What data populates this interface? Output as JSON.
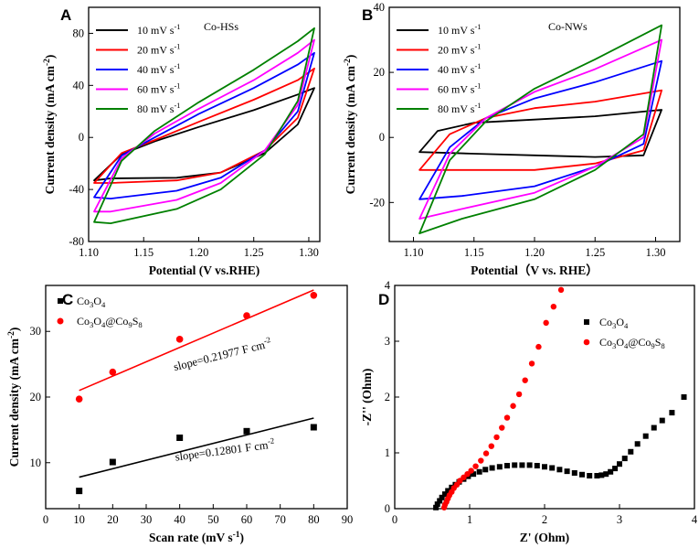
{
  "colors": {
    "black": "#000000",
    "red": "#ff0000",
    "blue": "#0000ff",
    "magenta": "#ff00ff",
    "green": "#008000"
  },
  "chart_data": [
    {
      "panel": "A",
      "type": "line",
      "subtype": "cyclic-voltammetry",
      "title": "Co-HSs",
      "xlabel": "Potential (V vs.RHE)",
      "ylabel": "Current density (mA cm-2)",
      "ylabel_base": "Current density (mA cm",
      "ylabel_sup": "-2",
      "ylabel_end": ")",
      "xlim": [
        1.1,
        1.31
      ],
      "ylim": [
        -80,
        100
      ],
      "xticks": [
        1.1,
        1.15,
        1.2,
        1.25,
        1.3
      ],
      "xtick_labels": [
        "1.10",
        "1.15",
        "1.20",
        "1.25",
        "1.30"
      ],
      "yticks": [
        -80,
        -40,
        0,
        40,
        80
      ],
      "ytick_labels": [
        "-80",
        "-40",
        "0",
        "40",
        "80"
      ],
      "legend_position": "top-left",
      "series": [
        {
          "name": "10 mV s-1",
          "label": "10 mV s",
          "unit_sup": "-1",
          "color": "#000000",
          "top": [
            [
              1.105,
              -33
            ],
            [
              1.13,
              -13
            ],
            [
              1.16,
              -3
            ],
            [
              1.2,
              8
            ],
            [
              1.25,
              21
            ],
            [
              1.29,
              33
            ],
            [
              1.305,
              38
            ]
          ],
          "bottom": [
            [
              1.105,
              -33
            ],
            [
              1.12,
              -31.5
            ],
            [
              1.18,
              -31
            ],
            [
              1.22,
              -27
            ],
            [
              1.26,
              -12
            ],
            [
              1.29,
              10
            ],
            [
              1.305,
              38
            ]
          ]
        },
        {
          "name": "20 mV s-1",
          "label": "20 mV s",
          "unit_sup": "-1",
          "color": "#ff0000",
          "top": [
            [
              1.105,
              -35
            ],
            [
              1.13,
              -12
            ],
            [
              1.16,
              -2
            ],
            [
              1.2,
              12
            ],
            [
              1.25,
              29
            ],
            [
              1.29,
              44
            ],
            [
              1.305,
              53
            ]
          ],
          "bottom": [
            [
              1.105,
              -35
            ],
            [
              1.12,
              -35
            ],
            [
              1.18,
              -33
            ],
            [
              1.22,
              -27
            ],
            [
              1.26,
              -10
            ],
            [
              1.29,
              15
            ],
            [
              1.305,
              53
            ]
          ]
        },
        {
          "name": "40 mV s-1",
          "label": "40 mV s",
          "unit_sup": "-1",
          "color": "#0000ff",
          "top": [
            [
              1.105,
              -46
            ],
            [
              1.13,
              -14
            ],
            [
              1.16,
              0
            ],
            [
              1.2,
              18
            ],
            [
              1.25,
              38
            ],
            [
              1.29,
              56
            ],
            [
              1.305,
              65
            ]
          ],
          "bottom": [
            [
              1.105,
              -46
            ],
            [
              1.12,
              -47
            ],
            [
              1.18,
              -41
            ],
            [
              1.22,
              -31
            ],
            [
              1.26,
              -10
            ],
            [
              1.29,
              20
            ],
            [
              1.305,
              65
            ]
          ]
        },
        {
          "name": "60 mV s-1",
          "label": "60 mV s",
          "unit_sup": "-1",
          "color": "#ff00ff",
          "top": [
            [
              1.105,
              -57
            ],
            [
              1.13,
              -16
            ],
            [
              1.16,
              3
            ],
            [
              1.2,
              22
            ],
            [
              1.25,
              44
            ],
            [
              1.29,
              65
            ],
            [
              1.305,
              75
            ]
          ],
          "bottom": [
            [
              1.105,
              -57
            ],
            [
              1.12,
              -57
            ],
            [
              1.18,
              -48
            ],
            [
              1.22,
              -35
            ],
            [
              1.26,
              -10
            ],
            [
              1.29,
              25
            ],
            [
              1.305,
              75
            ]
          ]
        },
        {
          "name": "80 mV s-1",
          "label": "80 mV s",
          "unit_sup": "-1",
          "color": "#008000",
          "top": [
            [
              1.105,
              -65
            ],
            [
              1.13,
              -18
            ],
            [
              1.16,
              5
            ],
            [
              1.2,
              27
            ],
            [
              1.25,
              52
            ],
            [
              1.29,
              74
            ],
            [
              1.305,
              84
            ]
          ],
          "bottom": [
            [
              1.105,
              -65
            ],
            [
              1.12,
              -66
            ],
            [
              1.18,
              -55
            ],
            [
              1.22,
              -40
            ],
            [
              1.26,
              -13
            ],
            [
              1.29,
              28
            ],
            [
              1.305,
              84
            ]
          ]
        }
      ]
    },
    {
      "panel": "B",
      "type": "line",
      "subtype": "cyclic-voltammetry",
      "title": "Co-NWs",
      "xlabel": "Potential（V vs. RHE）",
      "ylabel": "Current density (mA cm-2)",
      "ylabel_base": "Current density (mA cm",
      "ylabel_sup": "-2",
      "ylabel_end": ")",
      "xlim": [
        1.08,
        1.32
      ],
      "ylim": [
        -32,
        40
      ],
      "xticks": [
        1.1,
        1.15,
        1.2,
        1.25,
        1.3
      ],
      "xtick_labels": [
        "1.10",
        "1.15",
        "1.20",
        "1.25",
        "1.30"
      ],
      "yticks": [
        -20,
        0,
        20,
        40
      ],
      "ytick_labels": [
        "-20",
        "0",
        "20",
        "40"
      ],
      "legend_position": "top-left",
      "series": [
        {
          "name": "10 mV s-1",
          "label": "10 mV s",
          "unit_sup": "-1",
          "color": "#000000",
          "top": [
            [
              1.105,
              -4.5
            ],
            [
              1.12,
              2
            ],
            [
              1.15,
              4.5
            ],
            [
              1.2,
              5.5
            ],
            [
              1.25,
              6.5
            ],
            [
              1.305,
              8.5
            ]
          ],
          "bottom": [
            [
              1.105,
              -4.5
            ],
            [
              1.15,
              -5
            ],
            [
              1.2,
              -5.5
            ],
            [
              1.25,
              -6
            ],
            [
              1.29,
              -5.5
            ],
            [
              1.305,
              8.5
            ]
          ]
        },
        {
          "name": "20 mV s-1",
          "label": "20 mV s",
          "unit_sup": "-1",
          "color": "#ff0000",
          "top": [
            [
              1.105,
              -10
            ],
            [
              1.13,
              1
            ],
            [
              1.16,
              6
            ],
            [
              1.2,
              9
            ],
            [
              1.25,
              11
            ],
            [
              1.305,
              14.5
            ]
          ],
          "bottom": [
            [
              1.105,
              -10
            ],
            [
              1.14,
              -10
            ],
            [
              1.2,
              -10
            ],
            [
              1.25,
              -8
            ],
            [
              1.29,
              -4
            ],
            [
              1.305,
              14.5
            ]
          ]
        },
        {
          "name": "40 mV s-1",
          "label": "40 mV s",
          "unit_sup": "-1",
          "color": "#0000ff",
          "top": [
            [
              1.105,
              -19
            ],
            [
              1.13,
              -3
            ],
            [
              1.16,
              6
            ],
            [
              1.2,
              12
            ],
            [
              1.25,
              17
            ],
            [
              1.305,
              23.5
            ]
          ],
          "bottom": [
            [
              1.105,
              -19
            ],
            [
              1.14,
              -18
            ],
            [
              1.2,
              -15
            ],
            [
              1.25,
              -9
            ],
            [
              1.29,
              -2
            ],
            [
              1.305,
              23.5
            ]
          ]
        },
        {
          "name": "60 mV s-1",
          "label": "60 mV s",
          "unit_sup": "-1",
          "color": "#ff00ff",
          "top": [
            [
              1.105,
              -25
            ],
            [
              1.13,
              -5
            ],
            [
              1.16,
              6
            ],
            [
              1.2,
              14
            ],
            [
              1.25,
              21
            ],
            [
              1.305,
              30
            ]
          ],
          "bottom": [
            [
              1.105,
              -25
            ],
            [
              1.14,
              -22
            ],
            [
              1.2,
              -17
            ],
            [
              1.25,
              -9
            ],
            [
              1.29,
              0
            ],
            [
              1.305,
              30
            ]
          ]
        },
        {
          "name": "80 mV s-1",
          "label": "80 mV s",
          "unit_sup": "-1",
          "color": "#008000",
          "top": [
            [
              1.105,
              -29.5
            ],
            [
              1.13,
              -7
            ],
            [
              1.16,
              5
            ],
            [
              1.2,
              15
            ],
            [
              1.25,
              24
            ],
            [
              1.305,
              34.5
            ]
          ],
          "bottom": [
            [
              1.105,
              -29.5
            ],
            [
              1.14,
              -25
            ],
            [
              1.2,
              -19
            ],
            [
              1.25,
              -10
            ],
            [
              1.29,
              1
            ],
            [
              1.305,
              34.5
            ]
          ]
        }
      ]
    },
    {
      "panel": "C",
      "type": "scatter",
      "xlabel": "Scan rate (mV s-1)",
      "xlabel_base": "Scan rate (mV s",
      "xlabel_sup": "-1",
      "xlabel_end": ")",
      "ylabel": "Current  density (mA cm-2)",
      "ylabel_base": "Current  density (mA cm",
      "ylabel_sup": "-2",
      "ylabel_end": ")",
      "xlim": [
        0,
        90
      ],
      "ylim": [
        3,
        37
      ],
      "xticks": [
        0,
        10,
        20,
        30,
        40,
        50,
        60,
        70,
        80,
        90
      ],
      "xtick_labels": [
        "0",
        "10",
        "20",
        "30",
        "40",
        "50",
        "60",
        "70",
        "80",
        "90"
      ],
      "yticks": [
        10,
        20,
        30
      ],
      "ytick_labels": [
        "10",
        "20",
        "30"
      ],
      "legend_position": "top-left",
      "series": [
        {
          "name": "Co3O4",
          "color": "#000000",
          "marker": "square",
          "x": [
            10,
            20,
            40,
            60,
            80
          ],
          "y": [
            5.7,
            10.1,
            13.8,
            14.8,
            15.4
          ],
          "fit": [
            [
              10,
              7.8
            ],
            [
              80,
              16.8
            ]
          ],
          "slope_label": "slope=0.12801 F cm",
          "slope_sup": "-2"
        },
        {
          "name": "Co3O4@Co9S8",
          "color": "#ff0000",
          "marker": "circle",
          "x": [
            10,
            20,
            40,
            60,
            80
          ],
          "y": [
            19.7,
            23.8,
            28.8,
            32.4,
            35.5
          ],
          "fit": [
            [
              10,
              21.0
            ],
            [
              80,
              36.3
            ]
          ],
          "slope_label": "slope=0.21977 F cm",
          "slope_sup": "-2"
        }
      ]
    },
    {
      "panel": "D",
      "type": "scatter",
      "subtype": "nyquist",
      "xlabel": "Z' (Ohm)",
      "ylabel": "-Z'' (Ohm)",
      "xlim": [
        0,
        4
      ],
      "ylim": [
        0,
        4
      ],
      "xticks": [
        0,
        1,
        2,
        3,
        4
      ],
      "xtick_labels": [
        "0",
        "1",
        "2",
        "3",
        "4"
      ],
      "yticks": [
        0,
        1,
        2,
        3,
        4
      ],
      "ytick_labels": [
        "0",
        "1",
        "2",
        "3",
        "4"
      ],
      "legend_position": "top-right",
      "series": [
        {
          "name": "Co3O4",
          "color": "#000000",
          "marker": "square",
          "x": [
            0.55,
            0.57,
            0.6,
            0.63,
            0.67,
            0.71,
            0.76,
            0.81,
            0.86,
            0.92,
            0.98,
            1.05,
            1.13,
            1.21,
            1.3,
            1.4,
            1.5,
            1.6,
            1.7,
            1.8,
            1.9,
            2.0,
            2.1,
            2.2,
            2.3,
            2.4,
            2.5,
            2.6,
            2.7,
            2.76,
            2.82,
            2.88,
            2.94,
            3.0,
            3.07,
            3.15,
            3.24,
            3.35,
            3.46,
            3.57,
            3.7,
            3.86
          ],
          "y": [
            0.02,
            0.08,
            0.14,
            0.2,
            0.26,
            0.32,
            0.38,
            0.43,
            0.48,
            0.53,
            0.58,
            0.62,
            0.66,
            0.7,
            0.73,
            0.75,
            0.77,
            0.78,
            0.78,
            0.78,
            0.77,
            0.75,
            0.73,
            0.7,
            0.67,
            0.64,
            0.61,
            0.59,
            0.59,
            0.6,
            0.62,
            0.66,
            0.72,
            0.8,
            0.9,
            1.02,
            1.16,
            1.3,
            1.45,
            1.58,
            1.72,
            2.0
          ]
        },
        {
          "name": "Co3O4@Co9S8",
          "color": "#ff0000",
          "marker": "circle",
          "x": [
            0.66,
            0.67,
            0.69,
            0.71,
            0.73,
            0.76,
            0.79,
            0.83,
            0.87,
            0.92,
            0.97,
            1.02,
            1.08,
            1.15,
            1.22,
            1.29,
            1.36,
            1.43,
            1.5,
            1.58,
            1.66,
            1.74,
            1.83,
            1.92,
            2.02,
            2.12,
            2.22
          ],
          "y": [
            0.02,
            0.07,
            0.12,
            0.18,
            0.24,
            0.3,
            0.37,
            0.43,
            0.5,
            0.56,
            0.62,
            0.68,
            0.76,
            0.86,
            0.99,
            1.12,
            1.28,
            1.45,
            1.63,
            1.84,
            2.05,
            2.3,
            2.6,
            2.9,
            3.33,
            3.62,
            3.92
          ]
        }
      ]
    }
  ]
}
